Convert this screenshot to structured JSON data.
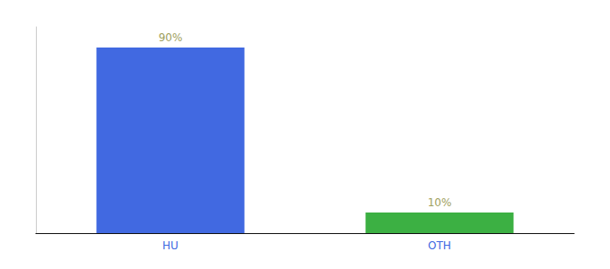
{
  "chart_data": {
    "type": "bar",
    "categories": [
      "HU",
      "OTH"
    ],
    "values": [
      90,
      10
    ],
    "value_labels": [
      "90%",
      "10%"
    ],
    "colors": [
      "#4169E1",
      "#3CB043"
    ],
    "data_labels": true,
    "ylim": [
      0,
      100
    ],
    "tick_labels": "x",
    "grid": false
  }
}
